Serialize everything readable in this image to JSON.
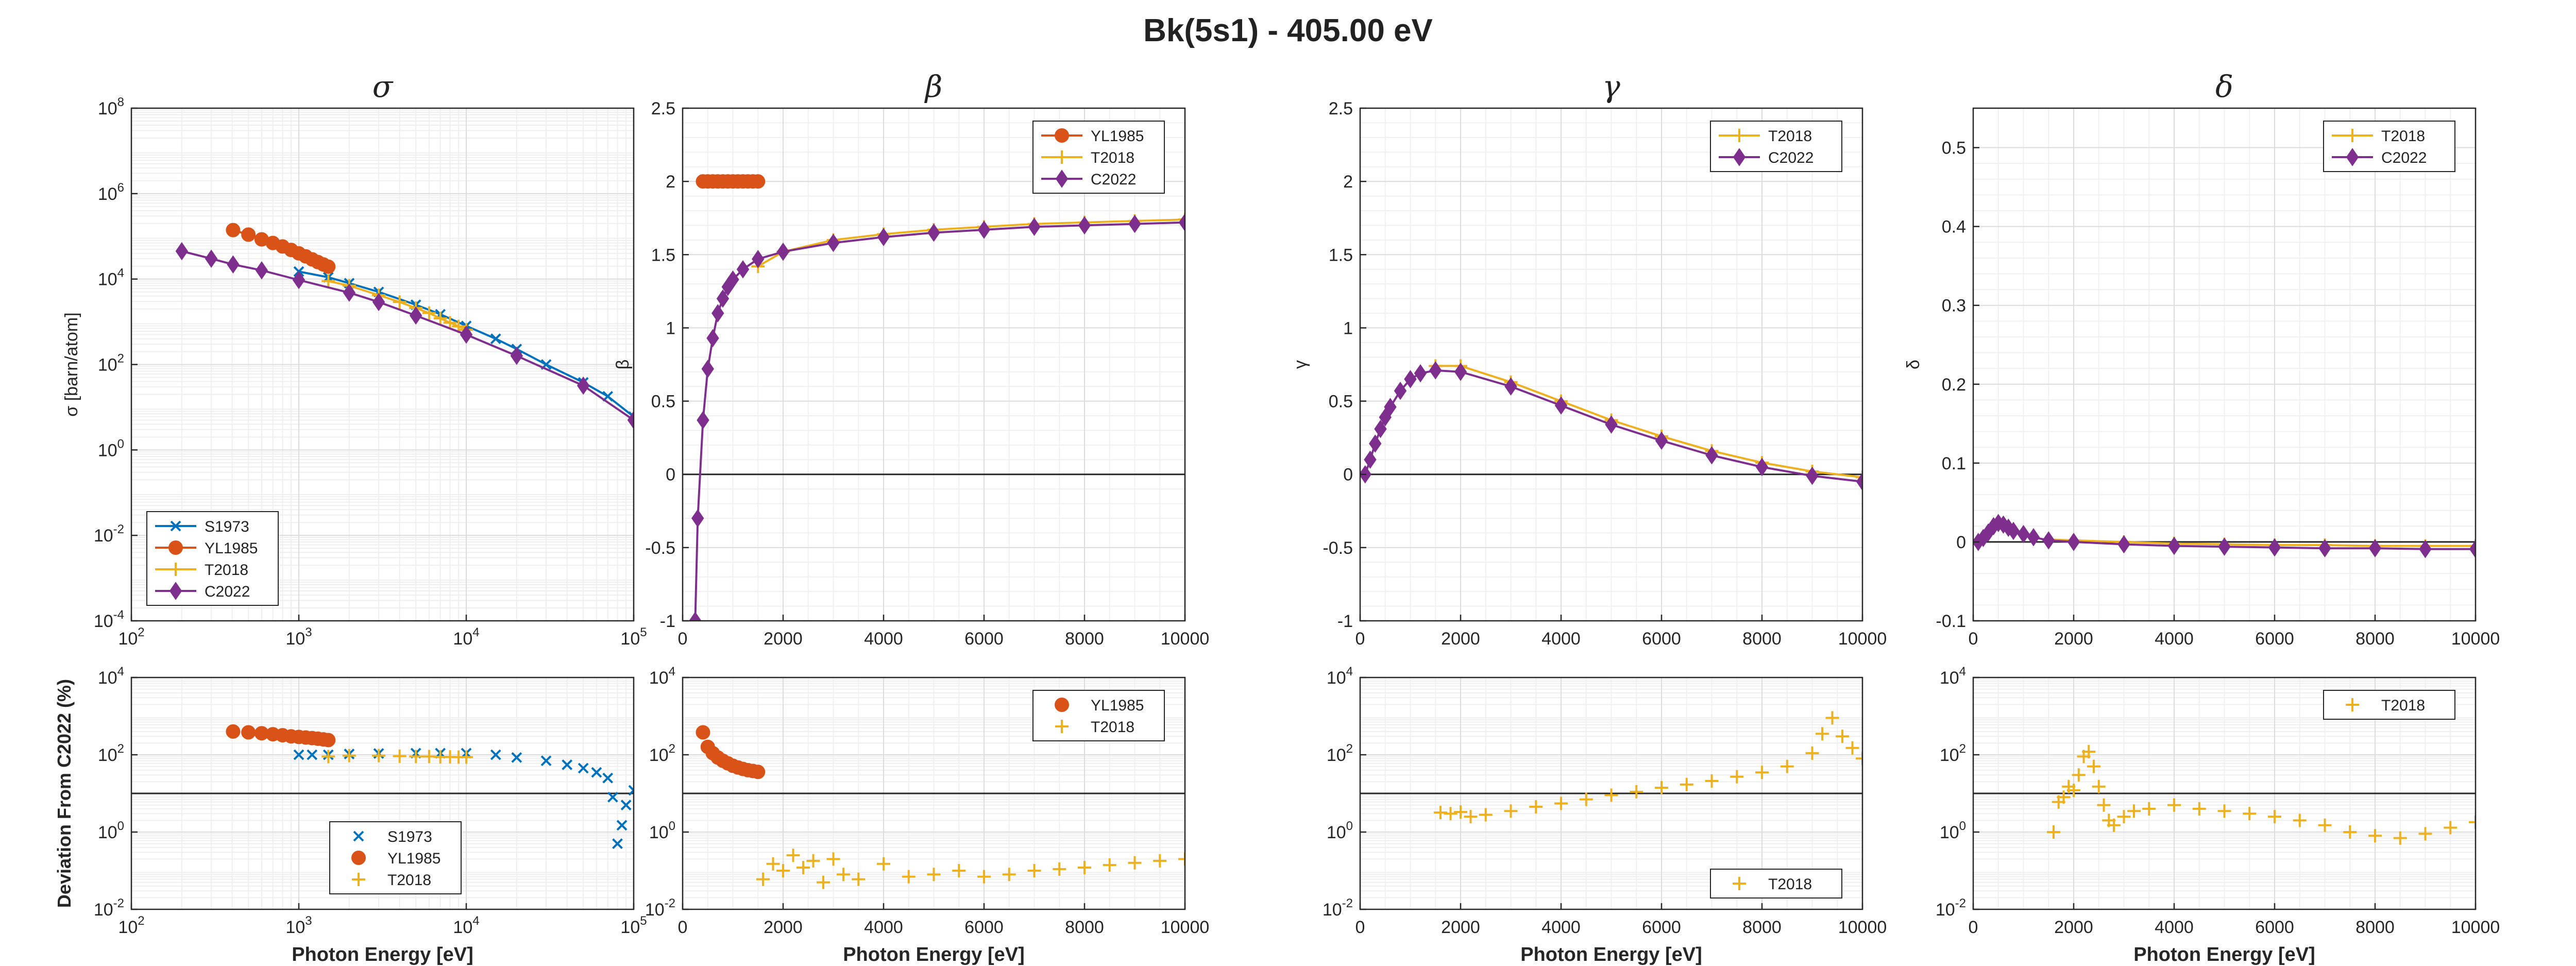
{
  "title": "Bk(5s1) - 405.00 eV",
  "colors": {
    "S1973": "#0072BD",
    "YL1985": "#D95319",
    "T2018": "#EDB120",
    "C2022": "#7E2F8E"
  },
  "chart_data": [
    {
      "type": "line",
      "title": "σ",
      "xlabel": "",
      "ylabel": "σ [barn/atom]",
      "xscale": "log",
      "yscale": "log",
      "xlim": [
        100,
        100000
      ],
      "ylim": [
        0.0001,
        100000000
      ],
      "x_ticks": [
        "10^2",
        "10^3",
        "10^4",
        "10^5"
      ],
      "y_ticks": [
        "10^-4",
        "10^-2",
        "10^0",
        "10^2",
        "10^4",
        "10^6",
        "10^8"
      ],
      "grid": true,
      "legend": "bottom-left",
      "series": [
        {
          "name": "S1973",
          "marker": "x",
          "x": [
            1000,
            1500,
            2000,
            3000,
            5000,
            7000,
            10000,
            15000,
            20000,
            30000,
            50000,
            70000,
            100000
          ],
          "y": [
            15000,
            11000,
            8000,
            5000,
            2500,
            1500,
            800,
            400,
            230,
            100,
            38,
            18,
            6
          ]
        },
        {
          "name": "YL1985",
          "marker": "o",
          "x": [
            405,
            500,
            600,
            700,
            800,
            900,
            1000,
            1100,
            1200,
            1300,
            1400,
            1500
          ],
          "y": [
            140000,
            110000,
            85000,
            70000,
            58000,
            48000,
            40000,
            34000,
            29000,
            25000,
            22000,
            19500
          ]
        },
        {
          "name": "T2018",
          "marker": "+",
          "x": [
            1500,
            2000,
            3000,
            4000,
            5000,
            6000,
            7000,
            8000,
            9000,
            10000
          ],
          "y": [
            9000,
            7000,
            4200,
            2900,
            2100,
            1600,
            1200,
            950,
            780,
            650
          ]
        },
        {
          "name": "C2022",
          "marker": "d",
          "x": [
            200,
            300,
            405,
            600,
            1000,
            2000,
            3000,
            5000,
            10000,
            20000,
            50000,
            100000
          ],
          "y": [
            45000,
            30000,
            22000,
            16000,
            9500,
            4800,
            2900,
            1400,
            500,
            160,
            32,
            5
          ]
        }
      ]
    },
    {
      "type": "line",
      "title": "β",
      "xlabel": "",
      "ylabel": "β",
      "xlim": [
        0,
        10000
      ],
      "ylim": [
        -1,
        2.5
      ],
      "x_ticks": [
        "0",
        "2000",
        "4000",
        "6000",
        "8000",
        "10000"
      ],
      "y_ticks": [
        "-1",
        "-0.5",
        "0",
        "0.5",
        "1",
        "1.5",
        "2",
        "2.5"
      ],
      "grid": true,
      "legend": "top-right",
      "series": [
        {
          "name": "YL1985",
          "marker": "o",
          "x": [
            405,
            500,
            600,
            700,
            800,
            900,
            1000,
            1100,
            1200,
            1300,
            1400,
            1500
          ],
          "y": [
            2,
            2,
            2,
            2,
            2,
            2,
            2,
            2,
            2,
            2,
            2,
            2
          ]
        },
        {
          "name": "T2018",
          "marker": "+",
          "x": [
            1500,
            2000,
            3000,
            4000,
            5000,
            6000,
            7000,
            8000,
            9000,
            10000
          ],
          "y": [
            1.42,
            1.52,
            1.6,
            1.64,
            1.67,
            1.69,
            1.71,
            1.72,
            1.73,
            1.74
          ]
        },
        {
          "name": "C2022",
          "marker": "d",
          "x": [
            250,
            300,
            405,
            500,
            600,
            700,
            800,
            900,
            1000,
            1200,
            1500,
            2000,
            3000,
            4000,
            5000,
            6000,
            7000,
            8000,
            9000,
            10000
          ],
          "y": [
            -1,
            -0.3,
            0.37,
            0.72,
            0.93,
            1.1,
            1.2,
            1.28,
            1.33,
            1.4,
            1.47,
            1.52,
            1.58,
            1.62,
            1.65,
            1.67,
            1.69,
            1.7,
            1.71,
            1.72
          ]
        }
      ]
    },
    {
      "type": "line",
      "title": "γ",
      "xlabel": "",
      "ylabel": "γ",
      "xlim": [
        0,
        10000
      ],
      "ylim": [
        -1,
        2.5
      ],
      "x_ticks": [
        "0",
        "2000",
        "4000",
        "6000",
        "8000",
        "10000"
      ],
      "y_ticks": [
        "-1",
        "-0.5",
        "0",
        "0.5",
        "1",
        "1.5",
        "2",
        "2.5"
      ],
      "grid": true,
      "legend": "top-right",
      "series": [
        {
          "name": "T2018",
          "marker": "+",
          "x": [
            1500,
            2000,
            3000,
            4000,
            5000,
            6000,
            7000,
            8000,
            9000,
            10000
          ],
          "y": [
            0.74,
            0.74,
            0.63,
            0.5,
            0.37,
            0.26,
            0.16,
            0.08,
            0.02,
            -0.02
          ]
        },
        {
          "name": "C2022",
          "marker": "d",
          "x": [
            100,
            200,
            300,
            405,
            500,
            600,
            800,
            1000,
            1200,
            1500,
            2000,
            3000,
            4000,
            5000,
            6000,
            7000,
            8000,
            9000,
            10000
          ],
          "y": [
            0,
            0.1,
            0.21,
            0.31,
            0.39,
            0.46,
            0.57,
            0.65,
            0.69,
            0.71,
            0.7,
            0.6,
            0.47,
            0.34,
            0.23,
            0.13,
            0.05,
            -0.01,
            -0.05
          ]
        }
      ]
    },
    {
      "type": "line",
      "title": "δ",
      "xlabel": "",
      "ylabel": "δ",
      "xlim": [
        0,
        10000
      ],
      "ylim": [
        -0.1,
        0.55
      ],
      "x_ticks": [
        "0",
        "2000",
        "4000",
        "6000",
        "8000",
        "10000"
      ],
      "y_ticks": [
        "-0.1",
        "0",
        "0.1",
        "0.2",
        "0.3",
        "0.4",
        "0.5"
      ],
      "grid": true,
      "legend": "top-right",
      "series": [
        {
          "name": "T2018",
          "marker": "+",
          "x": [
            1500,
            2000,
            3000,
            4000,
            5000,
            6000,
            7000,
            8000,
            9000,
            10000
          ],
          "y": [
            0.003,
            0.002,
            0,
            -0.002,
            -0.003,
            -0.004,
            -0.004,
            -0.005,
            -0.005,
            -0.005
          ]
        },
        {
          "name": "C2022",
          "marker": "d",
          "x": [
            100,
            200,
            300,
            405,
            500,
            600,
            700,
            800,
            1000,
            1200,
            1500,
            2000,
            3000,
            4000,
            5000,
            6000,
            7000,
            8000,
            9000,
            10000
          ],
          "y": [
            0,
            0.005,
            0.012,
            0.02,
            0.024,
            0.022,
            0.018,
            0.014,
            0.01,
            0.006,
            0.002,
            0,
            -0.003,
            -0.005,
            -0.006,
            -0.007,
            -0.008,
            -0.008,
            -0.009,
            -0.009
          ]
        }
      ]
    },
    {
      "type": "scatter",
      "title": "",
      "xlabel": "Photon Energy [eV]",
      "ylabel": "Deviation From C2022 (%)",
      "xscale": "log",
      "yscale": "log",
      "xlim": [
        100,
        100000
      ],
      "ylim": [
        0.01,
        10000
      ],
      "x_ticks": [
        "10^2",
        "10^3",
        "10^4",
        "10^5"
      ],
      "y_ticks": [
        "10^-2",
        "10^0",
        "10^2",
        "10^4"
      ],
      "reference_line": 10,
      "grid": true,
      "legend": "bottom-center",
      "series": [
        {
          "name": "S1973",
          "marker": "x",
          "x": [
            1000,
            1200,
            1500,
            2000,
            3000,
            5000,
            7000,
            10000,
            15000,
            20000,
            30000,
            40000,
            50000,
            60000,
            70000,
            75000,
            80000,
            85000,
            90000,
            100000
          ],
          "y": [
            100,
            100,
            100,
            105,
            108,
            110,
            110,
            110,
            100,
            85,
            70,
            55,
            45,
            35,
            25,
            8,
            0.5,
            1.5,
            5,
            12
          ]
        },
        {
          "name": "YL1985",
          "marker": "o",
          "x": [
            405,
            500,
            600,
            700,
            800,
            900,
            1000,
            1100,
            1200,
            1300,
            1400,
            1500
          ],
          "y": [
            400,
            380,
            360,
            340,
            320,
            300,
            290,
            280,
            270,
            260,
            250,
            240
          ]
        },
        {
          "name": "T2018",
          "marker": "+",
          "x": [
            1500,
            2000,
            3000,
            4000,
            5000,
            6000,
            7000,
            8000,
            9000,
            10000
          ],
          "y": [
            90,
            95,
            95,
            92,
            90,
            90,
            88,
            88,
            87,
            87
          ]
        }
      ]
    },
    {
      "type": "scatter",
      "title": "",
      "xlabel": "Photon Energy [eV]",
      "ylabel": "",
      "xlim": [
        0,
        10000
      ],
      "yscale": "log",
      "ylim": [
        0.01,
        10000
      ],
      "x_ticks": [
        "0",
        "2000",
        "4000",
        "6000",
        "8000",
        "10000"
      ],
      "y_ticks": [
        "10^-2",
        "10^0",
        "10^2",
        "10^4"
      ],
      "reference_line": 10,
      "grid": true,
      "legend": "top-right",
      "series": [
        {
          "name": "YL1985",
          "marker": "o",
          "x": [
            405,
            500,
            600,
            700,
            800,
            900,
            1000,
            1100,
            1200,
            1300,
            1400,
            1500
          ],
          "y": [
            380,
            160,
            110,
            85,
            70,
            60,
            52,
            47,
            43,
            40,
            38,
            36
          ]
        },
        {
          "name": "T2018",
          "marker": "+",
          "x": [
            1600,
            1800,
            2000,
            2200,
            2400,
            2600,
            2800,
            3000,
            3200,
            3500,
            4000,
            4500,
            5000,
            5500,
            6000,
            6500,
            7000,
            7500,
            8000,
            8500,
            9000,
            9500,
            10000
          ],
          "y": [
            0.06,
            0.15,
            0.1,
            0.25,
            0.12,
            0.18,
            0.05,
            0.2,
            0.08,
            0.06,
            0.15,
            0.07,
            0.08,
            0.1,
            0.07,
            0.08,
            0.1,
            0.11,
            0.12,
            0.14,
            0.16,
            0.18,
            0.2
          ]
        }
      ]
    },
    {
      "type": "scatter",
      "title": "",
      "xlabel": "Photon Energy [eV]",
      "ylabel": "",
      "xlim": [
        0,
        10000
      ],
      "yscale": "log",
      "ylim": [
        0.01,
        10000
      ],
      "x_ticks": [
        "0",
        "2000",
        "4000",
        "6000",
        "8000",
        "10000"
      ],
      "y_ticks": [
        "10^-2",
        "10^0",
        "10^2",
        "10^4"
      ],
      "reference_line": 10,
      "grid": true,
      "legend": "bottom-right",
      "series": [
        {
          "name": "T2018",
          "marker": "+",
          "x": [
            1600,
            1800,
            2000,
            2200,
            2500,
            3000,
            3500,
            4000,
            4500,
            5000,
            5500,
            6000,
            6500,
            7000,
            7500,
            8000,
            8500,
            9000,
            9200,
            9400,
            9600,
            9800,
            10000
          ],
          "y": [
            3.2,
            3.0,
            3.3,
            2.5,
            2.8,
            3.5,
            4.5,
            5.5,
            7,
            9,
            11,
            14,
            17,
            21,
            27,
            35,
            50,
            110,
            350,
            900,
            300,
            150,
            80
          ]
        }
      ]
    },
    {
      "type": "scatter",
      "title": "",
      "xlabel": "Photon Energy [eV]",
      "ylabel": "",
      "xlim": [
        0,
        10000
      ],
      "yscale": "log",
      "ylim": [
        0.01,
        10000
      ],
      "x_ticks": [
        "0",
        "2000",
        "4000",
        "6000",
        "8000",
        "10000"
      ],
      "y_ticks": [
        "10^-2",
        "10^0",
        "10^2",
        "10^4"
      ],
      "reference_line": 10,
      "grid": true,
      "legend": "top-right",
      "series": [
        {
          "name": "T2018",
          "marker": "+",
          "x": [
            1600,
            1700,
            1800,
            1900,
            2000,
            2100,
            2200,
            2300,
            2400,
            2500,
            2600,
            2700,
            2800,
            3000,
            3200,
            3500,
            4000,
            4500,
            5000,
            5500,
            6000,
            6500,
            7000,
            7500,
            8000,
            8500,
            9000,
            9500,
            10000
          ],
          "y": [
            1.0,
            6,
            8,
            15,
            12,
            30,
            90,
            120,
            50,
            15,
            5,
            2,
            1.5,
            2.5,
            3.5,
            4,
            5,
            4,
            3.5,
            3,
            2.5,
            2,
            1.5,
            1,
            0.8,
            0.7,
            0.9,
            1.3,
            1.8
          ]
        }
      ]
    }
  ]
}
